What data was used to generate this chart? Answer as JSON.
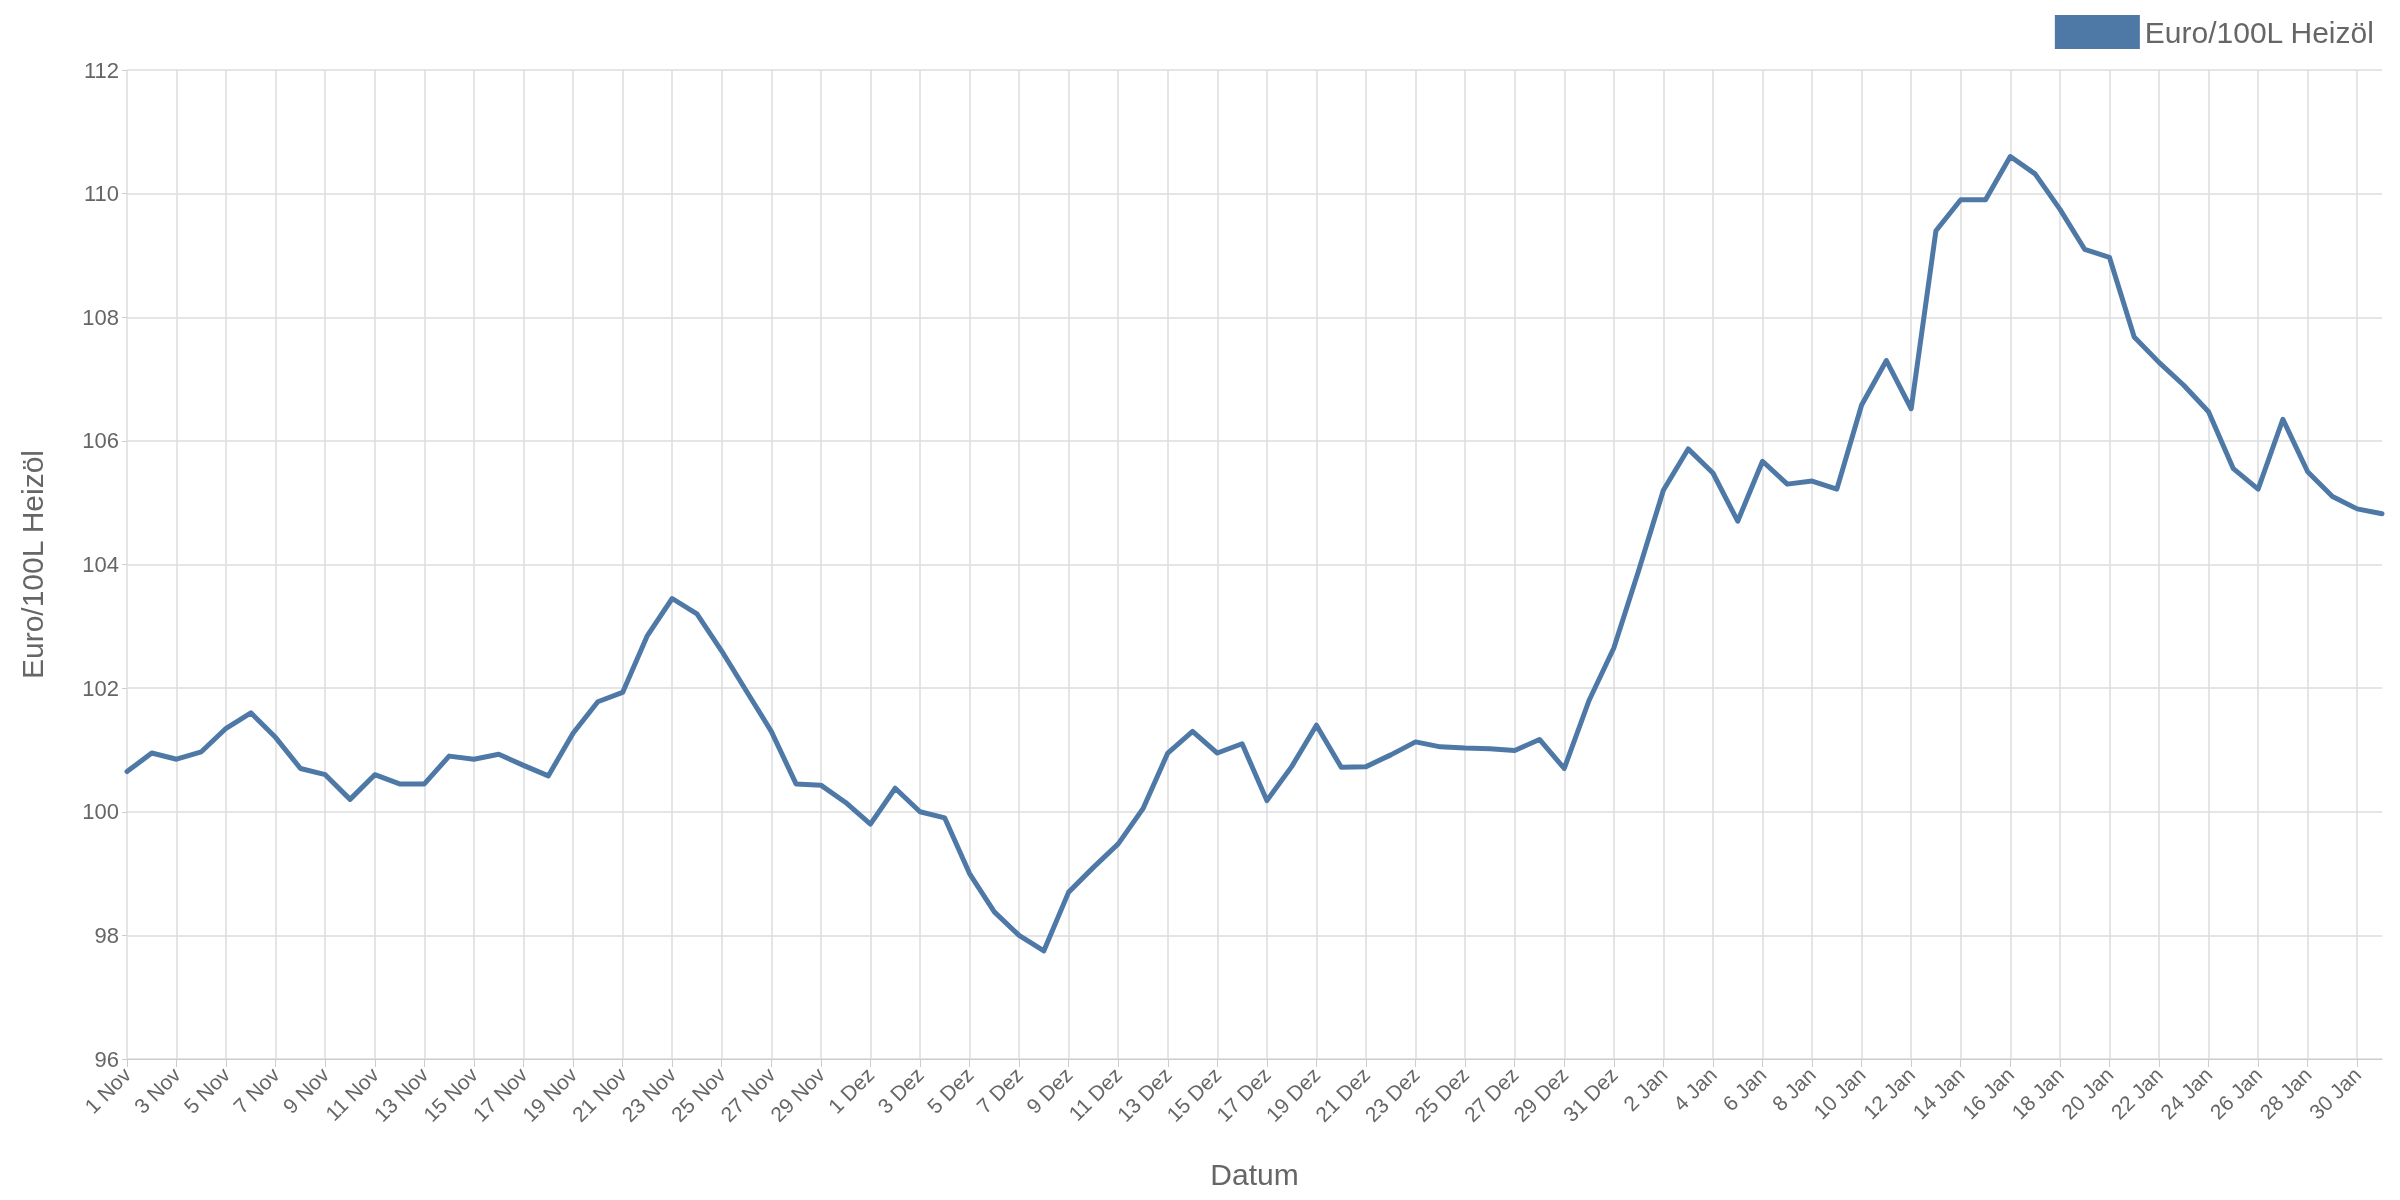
{
  "chart_data": {
    "type": "line",
    "xlabel": "Datum",
    "ylabel": "Euro/100L Heizöl",
    "categories": [
      "1 Nov",
      null,
      "3 Nov",
      null,
      "5 Nov",
      null,
      "7 Nov",
      null,
      "9 Nov",
      null,
      "11 Nov",
      null,
      "13 Nov",
      null,
      "15 Nov",
      null,
      "17 Nov",
      null,
      "19 Nov",
      null,
      "21 Nov",
      null,
      "23 Nov",
      null,
      "25 Nov",
      null,
      "27 Nov",
      null,
      "29 Nov",
      null,
      "1 Dez",
      null,
      "3 Dez",
      null,
      "5 Dez",
      null,
      "7 Dez",
      null,
      "9 Dez",
      null,
      "11 Dez",
      null,
      "13 Dez",
      null,
      "15 Dez",
      null,
      "17 Dez",
      null,
      "19 Dez",
      null,
      "21 Dez",
      null,
      "23 Dez",
      null,
      "25 Dez",
      null,
      "27 Dez",
      null,
      "29 Dez",
      null,
      "31 Dez",
      null,
      "2 Jan",
      null,
      "4 Jan",
      null,
      "6 Jan",
      null,
      "8 Jan",
      null,
      "10 Jan",
      null,
      "12 Jan",
      null,
      "14 Jan",
      null,
      "16 Jan",
      null,
      "18 Jan",
      null,
      "20 Jan",
      null,
      "22 Jan",
      null,
      "24 Jan",
      null,
      "26 Jan",
      null,
      "28 Jan",
      null,
      "30 Jan",
      null
    ],
    "series": [
      {
        "name": "Euro/100L Heizöl",
        "color": "#4e79a7",
        "values": [
          100.65,
          100.95,
          100.85,
          100.97,
          101.35,
          101.6,
          101.2,
          100.7,
          100.6,
          100.2,
          100.6,
          100.45,
          100.45,
          100.9,
          100.85,
          100.93,
          100.75,
          100.58,
          101.27,
          101.78,
          101.93,
          102.85,
          103.45,
          103.2,
          102.6,
          101.95,
          101.3,
          100.45,
          100.43,
          100.15,
          99.8,
          100.38,
          100.0,
          99.9,
          99.0,
          98.38,
          98.0,
          97.75,
          98.7,
          99.1,
          99.48,
          100.05,
          100.95,
          101.3,
          100.95,
          101.1,
          100.18,
          100.73,
          101.4,
          100.72,
          100.73,
          100.92,
          101.13,
          101.05,
          101.03,
          101.02,
          100.99,
          101.17,
          100.7,
          101.8,
          102.65,
          103.9,
          105.2,
          105.87,
          105.48,
          104.7,
          105.67,
          105.3,
          105.35,
          105.22,
          106.58,
          107.3,
          106.52,
          109.4,
          109.9,
          109.9,
          110.6,
          110.32,
          109.75,
          109.1,
          108.97,
          107.68,
          107.27,
          106.9,
          106.47,
          105.55,
          105.22,
          106.35,
          105.5,
          105.1,
          104.9,
          104.82
        ]
      }
    ],
    "ylim": [
      96,
      112
    ],
    "yticks": [
      96,
      98,
      100,
      102,
      104,
      106,
      108,
      110,
      112
    ],
    "grid": true,
    "legend": "top right",
    "marker": "none",
    "line_style": "solid"
  }
}
